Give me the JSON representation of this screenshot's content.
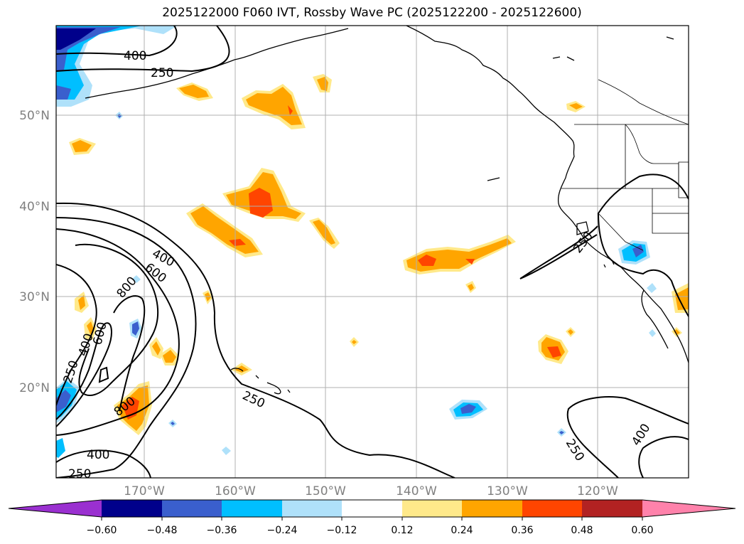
{
  "title": "2025122000 F060 IVT, Rossby Wave PC (2025122200 - 2025122600)",
  "map": {
    "lat_labels": [
      "50°N",
      "40°N",
      "30°N",
      "20°N"
    ],
    "lon_labels": [
      "170°W",
      "160°W",
      "150°W",
      "140°W",
      "130°W",
      "120°W"
    ]
  },
  "contour_labels": [
    "400",
    "250",
    "400",
    "600",
    "800",
    "600",
    "400",
    "250",
    "800",
    "400",
    "250",
    "250",
    "250",
    "400",
    "250"
  ],
  "colorbar": {
    "tick_labels": [
      "−0.60",
      "−0.48",
      "−0.36",
      "−0.24",
      "−0.12",
      "0.12",
      "0.24",
      "0.36",
      "0.48",
      "0.60"
    ],
    "colors": [
      "#9a30d0",
      "#00008b",
      "#3a5fcd",
      "#00bfff",
      "#afe1fa",
      "#ffffff",
      "#ffe98a",
      "#ffa500",
      "#ff4500",
      "#b22222",
      "#ff82ab"
    ]
  }
}
